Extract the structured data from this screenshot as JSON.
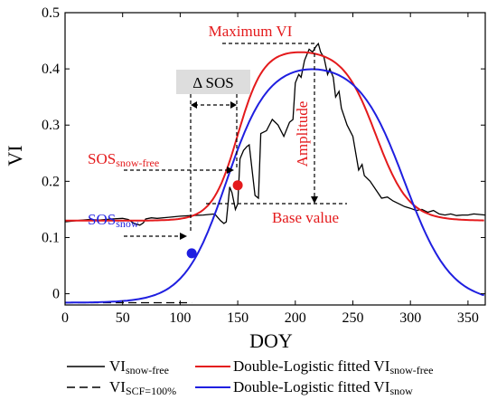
{
  "chart_data": {
    "type": "line",
    "xlabel": "DOY",
    "ylabel": "VI",
    "xlim": [
      0,
      365
    ],
    "ylim": [
      -0.02,
      0.5
    ],
    "x_ticks": [
      0,
      50,
      100,
      150,
      200,
      250,
      300,
      350
    ],
    "y_ticks": [
      0,
      0.1,
      0.2,
      0.3,
      0.4,
      0.5
    ],
    "grid": false,
    "legend_position": "bottom",
    "series": [
      {
        "name": "VI snow-free",
        "color": "#000000",
        "style": "solid",
        "x": [
          0,
          10,
          20,
          30,
          40,
          50,
          55,
          60,
          65,
          68,
          70,
          75,
          80,
          90,
          100,
          110,
          120,
          130,
          135,
          138,
          140,
          143,
          145,
          148,
          150,
          152,
          155,
          158,
          160,
          165,
          168,
          170,
          175,
          180,
          185,
          190,
          195,
          198,
          200,
          203,
          205,
          208,
          210,
          212,
          215,
          218,
          220,
          222,
          225,
          228,
          230,
          233,
          235,
          238,
          240,
          245,
          250,
          255,
          258,
          260,
          265,
          270,
          275,
          280,
          285,
          290,
          295,
          300,
          305,
          310,
          315,
          320,
          325,
          330,
          335,
          340,
          345,
          350,
          355,
          360,
          365
        ],
        "y": [
          0.128,
          0.13,
          0.132,
          0.131,
          0.133,
          0.134,
          0.132,
          0.125,
          0.122,
          0.126,
          0.133,
          0.135,
          0.134,
          0.136,
          0.138,
          0.139,
          0.14,
          0.142,
          0.13,
          0.125,
          0.128,
          0.19,
          0.18,
          0.15,
          0.16,
          0.24,
          0.255,
          0.262,
          0.265,
          0.175,
          0.17,
          0.285,
          0.29,
          0.31,
          0.3,
          0.28,
          0.305,
          0.31,
          0.375,
          0.39,
          0.385,
          0.415,
          0.425,
          0.435,
          0.43,
          0.44,
          0.445,
          0.43,
          0.42,
          0.39,
          0.4,
          0.385,
          0.35,
          0.36,
          0.33,
          0.3,
          0.28,
          0.22,
          0.23,
          0.21,
          0.2,
          0.185,
          0.17,
          0.172,
          0.165,
          0.16,
          0.155,
          0.152,
          0.148,
          0.15,
          0.145,
          0.148,
          0.142,
          0.14,
          0.142,
          0.139,
          0.14,
          0.14,
          0.142,
          0.141,
          0.14
        ]
      },
      {
        "name": "VI SCF=100%",
        "color": "#000000",
        "style": "dashed",
        "x": [
          0,
          110
        ],
        "y": [
          -0.016,
          -0.016
        ]
      },
      {
        "name": "Double-Logistic fitted VI snow-free",
        "color": "#e41a1c",
        "style": "solid",
        "model": {
          "base": 0.13,
          "amp": 0.305,
          "sos": 150,
          "rsos": 0.09,
          "eos": 270,
          "reos": 0.07
        }
      },
      {
        "name": "Double-Logistic fitted VI snow",
        "color": "#1f1fe0",
        "style": "solid",
        "model": {
          "base": -0.016,
          "amp": 0.43,
          "sos": 140,
          "rsos": 0.055,
          "eos": 295,
          "reos": 0.05
        }
      }
    ],
    "points": [
      {
        "label": "SOSsnow-free",
        "x": 150,
        "y": 0.193,
        "color": "#e41a1c"
      },
      {
        "label": "SOSsnow",
        "x": 110,
        "y": 0.072,
        "color": "#1f1fe0"
      }
    ],
    "annotations": {
      "max_vi": "Maximum VI",
      "amplitude": "Amplitude",
      "base_value": "Base value",
      "delta_sos": "Δ SOS",
      "sos_snowfree_main": "SOS",
      "sos_snowfree_sub": "snow-free",
      "sos_snow_main": "SOS",
      "sos_snow_sub": "snow"
    },
    "legend": {
      "vi_snowfree_main": "VI",
      "vi_snowfree_sub": "snow-free",
      "vi_scf_main": "VI",
      "vi_scf_sub": "SCF=100%",
      "dl_snowfree_main": "Double-Logistic fitted VI",
      "dl_snowfree_sub": "snow-free",
      "dl_snow_main": "Double-Logistic fitted VI",
      "dl_snow_sub": "snow"
    }
  }
}
